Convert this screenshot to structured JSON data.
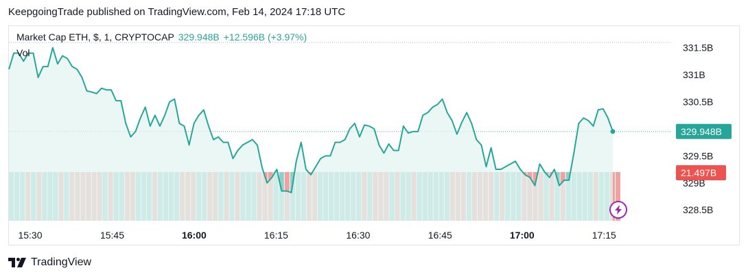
{
  "header": {
    "publisher_text": "KeepgoingTrade published on TradingView.com, Feb 14, 2024 17:18 UTC"
  },
  "legend": {
    "symbol": "Market Cap ETH, $, 1, CRYPTOCAP",
    "last_value": "329.948B",
    "change": "+12.596B (+3.97%)",
    "volume_label": "Vol"
  },
  "badges": {
    "price": "329.948B",
    "volume": "21.497B"
  },
  "footer": {
    "brand": "TradingView"
  },
  "colors": {
    "line": "#26a69a",
    "area": "#e3f4f1",
    "up_volume": "#8fcfc6",
    "down_volume": "#efa3a1",
    "price_badge": "#26a69a",
    "volume_badge": "#ef5350",
    "grid": "#e0e3eb"
  },
  "chart_data": {
    "type": "line",
    "title": "Market Cap ETH, $, 1, CRYPTOCAP",
    "x_ticks": [
      {
        "label": "15:30",
        "bold": false
      },
      {
        "label": "15:45",
        "bold": false
      },
      {
        "label": "16:00",
        "bold": true
      },
      {
        "label": "16:15",
        "bold": false
      },
      {
        "label": "16:30",
        "bold": false
      },
      {
        "label": "16:45",
        "bold": false
      },
      {
        "label": "17:00",
        "bold": true
      },
      {
        "label": "17:15",
        "bold": false
      }
    ],
    "y_ticks": [
      "331.5B",
      "331B",
      "330.5B",
      "329.5B",
      "329B",
      "328.5B"
    ],
    "y_tick_values": [
      331.5,
      331.0,
      330.5,
      329.5,
      329.0,
      328.5
    ],
    "ylim": [
      328.3,
      331.9
    ],
    "x_range_minutes": [
      0,
      112
    ],
    "series": [
      {
        "values": [
          331.1,
          331.4,
          331.4,
          331.25,
          331.4,
          331.4,
          330.95,
          331.15,
          331.15,
          331.5,
          331.2,
          331.35,
          331.3,
          331.15,
          331.1,
          330.95,
          330.7,
          330.68,
          330.65,
          330.75,
          330.72,
          330.72,
          330.52,
          330.52,
          330.1,
          329.85,
          329.95,
          330.2,
          330.4,
          330.05,
          330.25,
          330.05,
          330.25,
          330.5,
          330.55,
          330.1,
          330.05,
          329.7,
          330.1,
          330.25,
          330.35,
          330.05,
          329.8,
          329.85,
          329.75,
          329.75,
          329.45,
          329.6,
          329.7,
          329.75,
          329.8,
          329.7,
          329.28,
          329.0,
          329.1,
          329.25,
          328.85,
          328.85,
          328.82,
          329.4,
          329.75,
          329.25,
          329.15,
          329.3,
          329.45,
          329.5,
          329.5,
          329.75,
          329.75,
          329.8,
          330.0,
          330.1,
          329.85,
          330.07,
          330.05,
          330.0,
          329.7,
          329.55,
          329.72,
          329.6,
          329.6,
          330.05,
          329.92,
          329.95,
          329.95,
          330.25,
          330.3,
          330.4,
          330.45,
          330.55,
          330.3,
          330.15,
          329.9,
          330.12,
          330.3,
          330.1,
          329.8,
          329.7,
          329.3,
          329.65,
          329.25,
          329.25,
          329.3,
          329.35,
          329.4,
          329.25,
          329.15,
          329.1,
          328.95,
          329.35,
          329.2,
          329.1,
          329.25,
          328.95,
          329.05,
          329.05,
          329.55,
          330.1,
          330.2,
          330.15,
          330.05,
          330.35,
          330.37,
          330.2,
          329.95
        ]
      }
    ],
    "volume": {
      "max_value": 21.497,
      "bar_count": 111
    }
  }
}
